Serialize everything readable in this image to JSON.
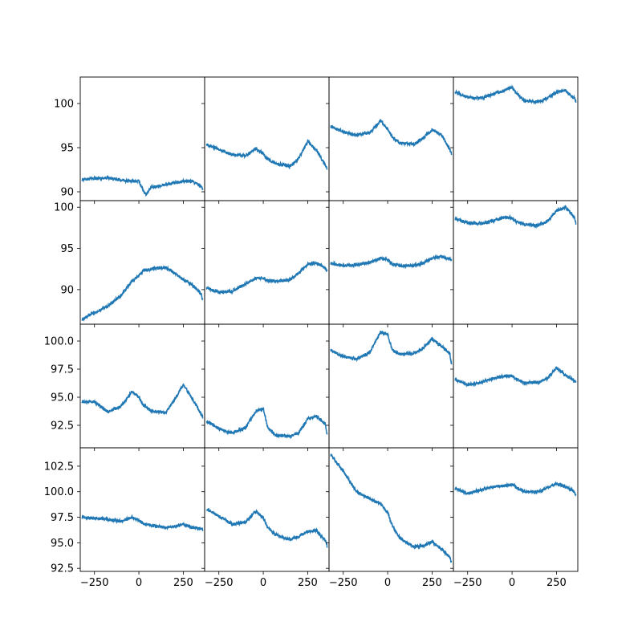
{
  "chart_data": {
    "type": "line",
    "layout": {
      "rows": 4,
      "cols": 4,
      "sharex": true,
      "sharey_by_row": true
    },
    "line_color": "#1f77b4",
    "x_range": [
      -330,
      370
    ],
    "x_ticks": [
      -250,
      0,
      250
    ],
    "x_tick_labels": [
      "−250",
      "0",
      "250"
    ],
    "grid": false,
    "legend": "none",
    "row_axes": [
      {
        "ylim": [
          89.0,
          103.0
        ],
        "yticks": [
          90,
          95,
          100
        ],
        "ytick_labels": [
          "90",
          "95",
          "100"
        ]
      },
      {
        "ylim": [
          85.8,
          100.8
        ],
        "yticks": [
          90,
          95,
          100
        ],
        "ytick_labels": [
          "90",
          "95",
          "100"
        ]
      },
      {
        "ylim": [
          90.5,
          101.5
        ],
        "yticks": [
          92.5,
          95.0,
          97.5,
          100.0
        ],
        "ytick_labels": [
          "92.5",
          "95.0",
          "97.5",
          "100.0"
        ]
      },
      {
        "ylim": [
          92.2,
          104.3
        ],
        "yticks": [
          92.5,
          95.0,
          97.5,
          100.0,
          102.5
        ],
        "ytick_labels": [
          "92.5",
          "95.0",
          "97.5",
          "100.0",
          "102.5"
        ]
      }
    ],
    "panels": [
      {
        "x": [
          -320,
          -250,
          -175,
          -100,
          -40,
          0,
          25,
          40,
          70,
          150,
          250,
          300,
          350,
          360
        ],
        "y": [
          91.4,
          91.5,
          91.6,
          91.3,
          91.2,
          91.2,
          90.2,
          89.7,
          90.5,
          90.8,
          91.2,
          91.2,
          90.6,
          90.3
        ]
      },
      {
        "x": [
          -320,
          -250,
          -175,
          -100,
          -40,
          0,
          25,
          70,
          150,
          200,
          250,
          300,
          350,
          360
        ],
        "y": [
          95.4,
          94.8,
          94.2,
          94.1,
          94.9,
          94.3,
          93.7,
          93.2,
          92.9,
          93.8,
          95.7,
          94.7,
          93.0,
          92.6
        ]
      },
      {
        "x": [
          -320,
          -250,
          -175,
          -100,
          -40,
          0,
          25,
          70,
          150,
          200,
          250,
          300,
          350,
          360
        ],
        "y": [
          97.4,
          96.8,
          96.4,
          96.7,
          98.0,
          97.1,
          96.2,
          95.5,
          95.4,
          96.1,
          97.0,
          96.5,
          94.8,
          94.2
        ]
      },
      {
        "x": [
          -320,
          -250,
          -175,
          -100,
          -40,
          0,
          25,
          70,
          150,
          200,
          250,
          300,
          350,
          360
        ],
        "y": [
          101.3,
          100.7,
          100.6,
          101.1,
          101.5,
          101.9,
          101.2,
          100.3,
          100.2,
          100.6,
          101.3,
          101.5,
          100.6,
          100.2
        ]
      },
      {
        "x": [
          -320,
          -250,
          -175,
          -100,
          -40,
          0,
          25,
          70,
          150,
          200,
          250,
          300,
          350,
          360
        ],
        "y": [
          86.4,
          87.2,
          88.0,
          89.3,
          91.0,
          91.7,
          92.3,
          92.5,
          92.7,
          92.0,
          91.2,
          90.6,
          89.5,
          88.6
        ]
      },
      {
        "x": [
          -320,
          -250,
          -175,
          -100,
          -40,
          0,
          25,
          70,
          150,
          200,
          250,
          300,
          350,
          360
        ],
        "y": [
          90.2,
          89.7,
          89.8,
          90.7,
          91.4,
          91.4,
          91.1,
          91.0,
          91.2,
          92.0,
          93.1,
          93.2,
          92.6,
          92.2
        ]
      },
      {
        "x": [
          -320,
          -250,
          -175,
          -100,
          -40,
          0,
          25,
          70,
          150,
          200,
          250,
          300,
          350,
          360
        ],
        "y": [
          93.2,
          92.9,
          93.0,
          93.3,
          93.8,
          93.6,
          93.1,
          92.9,
          92.9,
          93.2,
          93.8,
          94.0,
          93.7,
          93.5
        ]
      },
      {
        "x": [
          -320,
          -250,
          -175,
          -100,
          -40,
          0,
          25,
          70,
          150,
          200,
          250,
          300,
          350,
          360
        ],
        "y": [
          98.6,
          98.1,
          98.0,
          98.4,
          98.8,
          98.7,
          98.2,
          97.9,
          97.8,
          98.3,
          99.6,
          100.0,
          98.8,
          97.9
        ]
      },
      {
        "x": [
          -320,
          -250,
          -175,
          -100,
          -40,
          0,
          25,
          70,
          150,
          200,
          250,
          300,
          350,
          360
        ],
        "y": [
          94.6,
          94.6,
          93.7,
          94.2,
          95.5,
          95.0,
          94.3,
          93.8,
          93.6,
          94.8,
          96.1,
          94.9,
          93.5,
          93.2
        ]
      },
      {
        "x": [
          -320,
          -250,
          -175,
          -100,
          -40,
          0,
          25,
          70,
          150,
          200,
          250,
          300,
          350,
          360
        ],
        "y": [
          92.9,
          92.2,
          91.8,
          92.3,
          93.8,
          94.0,
          92.3,
          91.6,
          91.5,
          91.8,
          93.1,
          93.3,
          92.6,
          91.5
        ]
      },
      {
        "x": [
          -320,
          -250,
          -175,
          -100,
          -40,
          0,
          25,
          70,
          150,
          200,
          250,
          300,
          350,
          360
        ],
        "y": [
          99.2,
          98.6,
          98.4,
          99.0,
          100.8,
          100.6,
          99.2,
          98.8,
          98.9,
          99.4,
          100.2,
          99.6,
          98.9,
          97.8
        ]
      },
      {
        "x": [
          -320,
          -250,
          -175,
          -100,
          -40,
          0,
          25,
          70,
          150,
          200,
          250,
          300,
          350,
          360
        ],
        "y": [
          96.6,
          96.1,
          96.3,
          96.7,
          96.9,
          96.9,
          96.6,
          96.3,
          96.3,
          96.7,
          97.6,
          97.0,
          96.5,
          96.3
        ]
      },
      {
        "x": [
          -320,
          -250,
          -175,
          -100,
          -40,
          0,
          25,
          70,
          150,
          200,
          250,
          300,
          350,
          360
        ],
        "y": [
          97.5,
          97.4,
          97.3,
          97.1,
          97.5,
          97.2,
          96.9,
          96.7,
          96.5,
          96.6,
          96.8,
          96.5,
          96.4,
          96.2
        ]
      },
      {
        "x": [
          -320,
          -250,
          -175,
          -100,
          -40,
          0,
          25,
          70,
          150,
          200,
          250,
          300,
          350,
          360
        ],
        "y": [
          98.3,
          97.6,
          96.8,
          97.0,
          98.1,
          97.4,
          96.5,
          95.8,
          95.3,
          95.6,
          96.1,
          96.2,
          95.2,
          94.6
        ]
      },
      {
        "x": [
          -320,
          -250,
          -175,
          -100,
          -40,
          0,
          25,
          70,
          150,
          200,
          250,
          300,
          350,
          360
        ],
        "y": [
          103.6,
          102.0,
          100.0,
          99.3,
          98.8,
          98.0,
          96.7,
          95.4,
          94.6,
          94.7,
          95.1,
          94.4,
          93.6,
          93.0
        ]
      },
      {
        "x": [
          -320,
          -250,
          -175,
          -100,
          -40,
          0,
          25,
          70,
          150,
          200,
          250,
          300,
          350,
          360
        ],
        "y": [
          100.3,
          99.8,
          100.2,
          100.5,
          100.6,
          100.7,
          100.4,
          100.0,
          100.0,
          100.4,
          100.8,
          100.5,
          100.0,
          99.6
        ]
      }
    ]
  }
}
